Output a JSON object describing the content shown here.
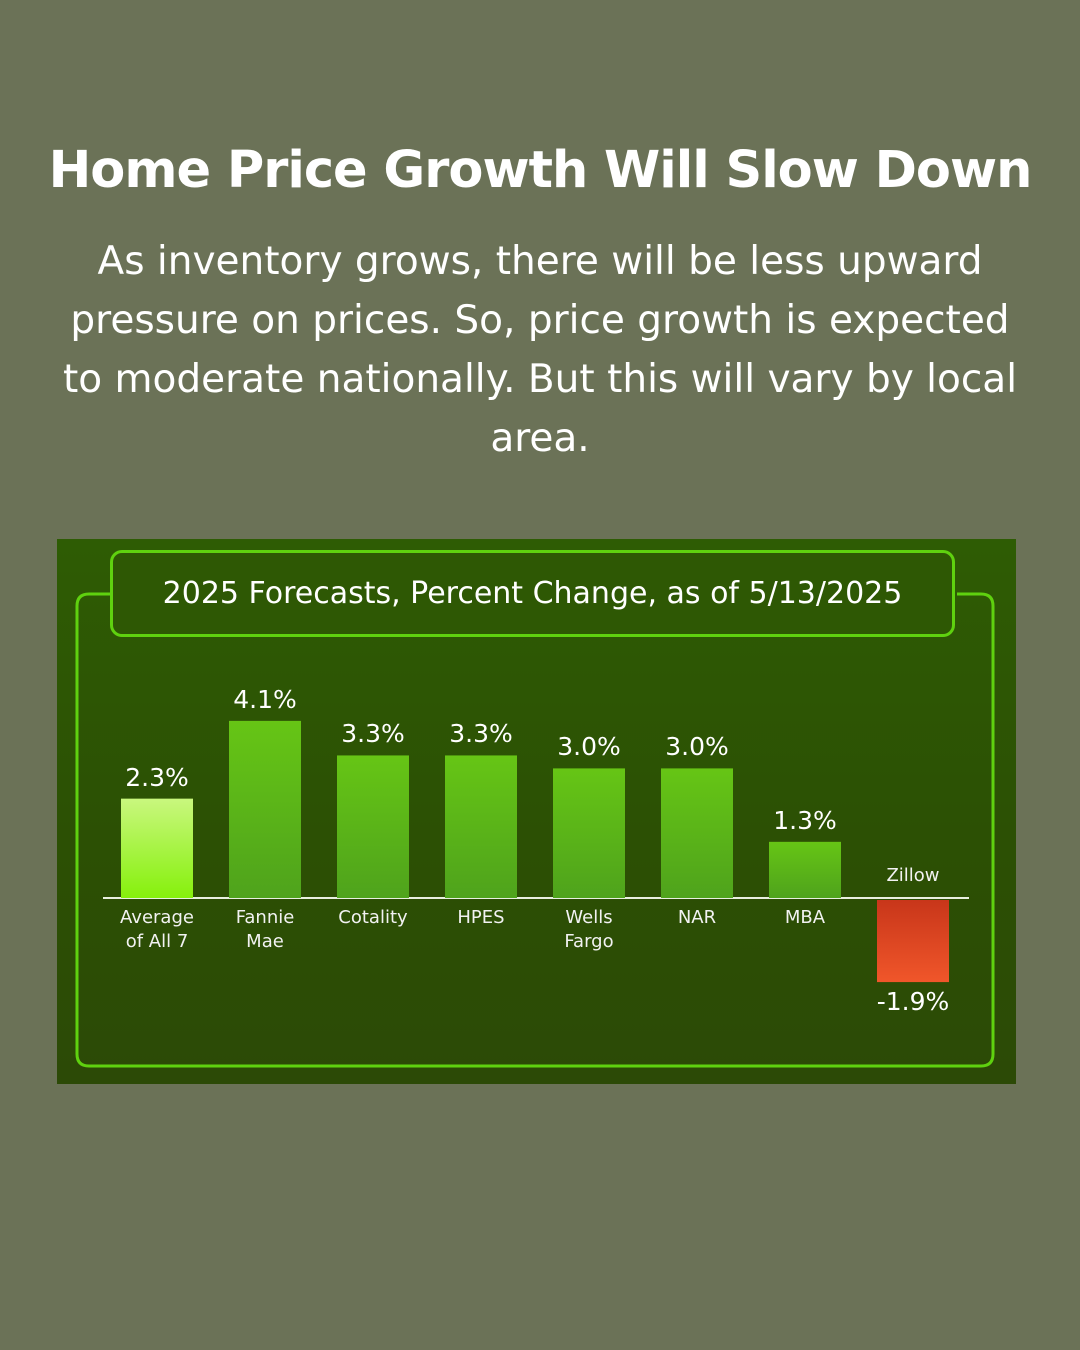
{
  "page": {
    "headline": "Home Price Growth Will Slow Down",
    "subhead": "As inventory grows, there will be less upward pressure on prices. So, price growth is expected to moderate nationally. But this will vary by local area."
  },
  "chart_data": {
    "type": "bar",
    "title": "2025 Forecasts, Percent Change, as of 5/13/2025",
    "categories": [
      "Average\nof All 7",
      "Fannie\nMae",
      "Cotality",
      "HPES",
      "Wells\nFargo",
      "NAR",
      "MBA",
      "Zillow"
    ],
    "values": [
      2.3,
      4.1,
      3.3,
      3.3,
      3.0,
      3.0,
      1.3,
      -1.9
    ],
    "value_labels": [
      "2.3%",
      "4.1%",
      "3.3%",
      "3.3%",
      "3.0%",
      "3.0%",
      "1.3%",
      "-1.9%"
    ],
    "ylim": [
      -1.9,
      4.1
    ],
    "grid": false,
    "colors": {
      "average": "#b8f55a",
      "positive": "#5cb51a",
      "negative": "#e84a1e",
      "frame": "#5fd10f",
      "panel": "#2c5004"
    }
  }
}
